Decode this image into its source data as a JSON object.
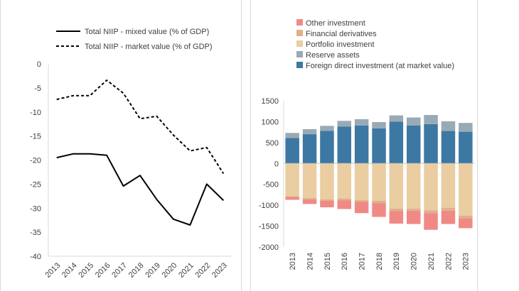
{
  "chart_data": [
    {
      "type": "line",
      "x": [
        "2013",
        "2014",
        "2015",
        "2016",
        "2017",
        "2018",
        "2019",
        "2020",
        "2021",
        "2022",
        "2023"
      ],
      "series": [
        {
          "name": "Total NIIP - mixed value (% of GDP)",
          "style": "solid",
          "values": [
            -19.5,
            -18.7,
            -18.7,
            -19.0,
            -25.4,
            -23.2,
            -28.2,
            -32.3,
            -33.5,
            -25.0,
            -28.4
          ]
        },
        {
          "name": "Total NIIP - market value (% of GDP)",
          "style": "dashed",
          "values": [
            -7.4,
            -6.6,
            -6.6,
            -3.4,
            -6.1,
            -11.4,
            -10.9,
            -14.8,
            -18.1,
            -17.4,
            -22.8
          ]
        }
      ],
      "yticks": [
        "0",
        "-5",
        "-10",
        "-15",
        "-20",
        "-25",
        "-30",
        "-35",
        "-40"
      ],
      "ylim": [
        -40,
        0
      ],
      "legend": "top",
      "colors": {
        "line": "#000000",
        "axis": "#d9d9d9",
        "text": "#404040"
      }
    },
    {
      "type": "bar",
      "stacked": true,
      "categories": [
        "2013",
        "2014",
        "2015",
        "2016",
        "2017",
        "2018",
        "2019",
        "2020",
        "2021",
        "2022",
        "2023"
      ],
      "series": [
        {
          "name": "Foreign direct investment (at market value)",
          "color": "#3d78a2",
          "values": [
            610,
            700,
            780,
            880,
            910,
            840,
            1000,
            910,
            940,
            780,
            760
          ]
        },
        {
          "name": "Reserve assets",
          "color": "#98aab5",
          "values": [
            120,
            120,
            120,
            140,
            150,
            150,
            150,
            190,
            220,
            230,
            210
          ]
        },
        {
          "name": "Portfolio investment",
          "color": "#eacda0",
          "values": [
            -780,
            -830,
            -860,
            -840,
            -880,
            -890,
            -1080,
            -1080,
            -1120,
            -1060,
            -1250
          ]
        },
        {
          "name": "Financial derivatives",
          "color": "#dfb08c",
          "values": [
            -30,
            -30,
            -30,
            -40,
            -40,
            -60,
            -60,
            -50,
            -70,
            -70,
            -70
          ]
        },
        {
          "name": "Other investment",
          "color": "#f08985",
          "values": [
            -60,
            -110,
            -160,
            -210,
            -270,
            -330,
            -300,
            -320,
            -400,
            -320,
            -230
          ]
        }
      ],
      "legend_order": [
        "Other investment",
        "Financial derivatives",
        "Portfolio investment",
        "Reserve assets",
        "Foreign direct investment (at market value)"
      ],
      "yticks": [
        "1500",
        "1000",
        "500",
        "0",
        "-500",
        "-1000",
        "-1500",
        "-2000"
      ],
      "ylim": [
        -2000,
        1500
      ],
      "legend": "top"
    }
  ]
}
